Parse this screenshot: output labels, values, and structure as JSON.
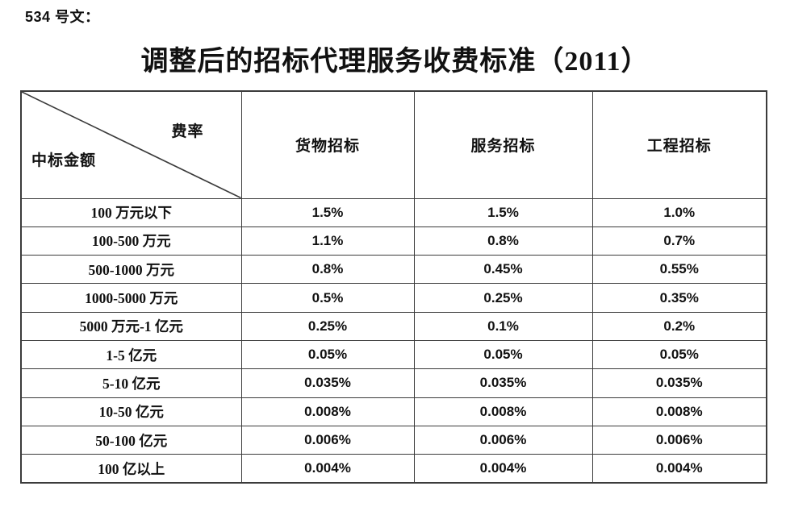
{
  "document": {
    "doc_number": "534 号文：",
    "title": "调整后的招标代理服务收费标准（2011）"
  },
  "table": {
    "corner": {
      "top_right_label": "费率",
      "bottom_left_label": "中标金额"
    },
    "columns": [
      "货物招标",
      "服务招标",
      "工程招标"
    ],
    "rows": [
      {
        "amount": "100 万元以下",
        "rates": [
          "1.5%",
          "1.5%",
          "1.0%"
        ]
      },
      {
        "amount": "100-500 万元",
        "rates": [
          "1.1%",
          "0.8%",
          "0.7%"
        ]
      },
      {
        "amount": "500-1000 万元",
        "rates": [
          "0.8%",
          "0.45%",
          "0.55%"
        ]
      },
      {
        "amount": "1000-5000 万元",
        "rates": [
          "0.5%",
          "0.25%",
          "0.35%"
        ]
      },
      {
        "amount": "5000 万元-1 亿元",
        "rates": [
          "0.25%",
          "0.1%",
          "0.2%"
        ]
      },
      {
        "amount": "1-5 亿元",
        "rates": [
          "0.05%",
          "0.05%",
          "0.05%"
        ]
      },
      {
        "amount": "5-10 亿元",
        "rates": [
          "0.035%",
          "0.035%",
          "0.035%"
        ]
      },
      {
        "amount": "10-50 亿元",
        "rates": [
          "0.008%",
          "0.008%",
          "0.008%"
        ]
      },
      {
        "amount": "50-100 亿元",
        "rates": [
          "0.006%",
          "0.006%",
          "0.006%"
        ]
      },
      {
        "amount": "100 亿以上",
        "rates": [
          "0.004%",
          "0.004%",
          "0.004%"
        ]
      }
    ],
    "colors": {
      "border": "#3b3b3b",
      "text": "#111111",
      "background": "#ffffff"
    }
  }
}
